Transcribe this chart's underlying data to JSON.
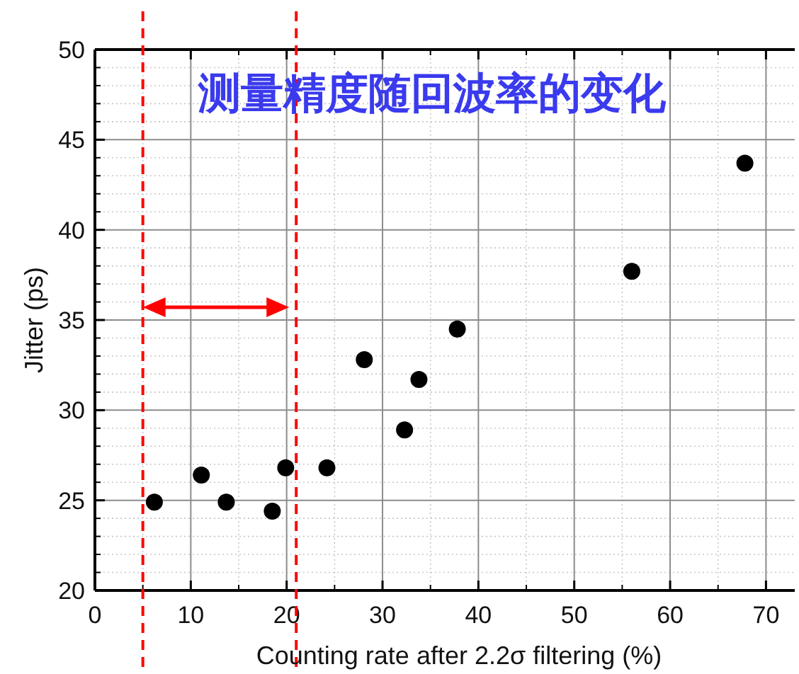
{
  "chart_data": {
    "type": "scatter",
    "title": "测量精度随回波率的变化",
    "xlabel": "Counting rate after 2.2σ filtering (%)",
    "ylabel": "Jitter (ps)",
    "x": [
      6.2,
      11.1,
      13.7,
      18.5,
      19.9,
      24.2,
      28.1,
      32.3,
      33.8,
      37.8,
      56.0,
      67.8
    ],
    "series": [
      {
        "color": "#000000",
        "values": [
          24.9,
          26.4,
          24.9,
          24.4,
          26.8,
          26.8,
          32.8,
          28.9,
          31.7,
          34.5,
          37.7,
          43.7
        ]
      }
    ],
    "xlim": [
      0,
      73
    ],
    "ylim": [
      20,
      50
    ],
    "xticks": [
      0,
      10,
      20,
      30,
      40,
      50,
      60,
      70
    ],
    "yticks": [
      20,
      25,
      30,
      35,
      40,
      45,
      50
    ],
    "grid": true,
    "marker": "circle",
    "ref_lines": [
      {
        "axis": "x",
        "value": 5,
        "color": "#ff0000",
        "line_style": "dashed"
      },
      {
        "axis": "x",
        "value": 21,
        "color": "#ff0000",
        "line_style": "dashed"
      }
    ]
  }
}
